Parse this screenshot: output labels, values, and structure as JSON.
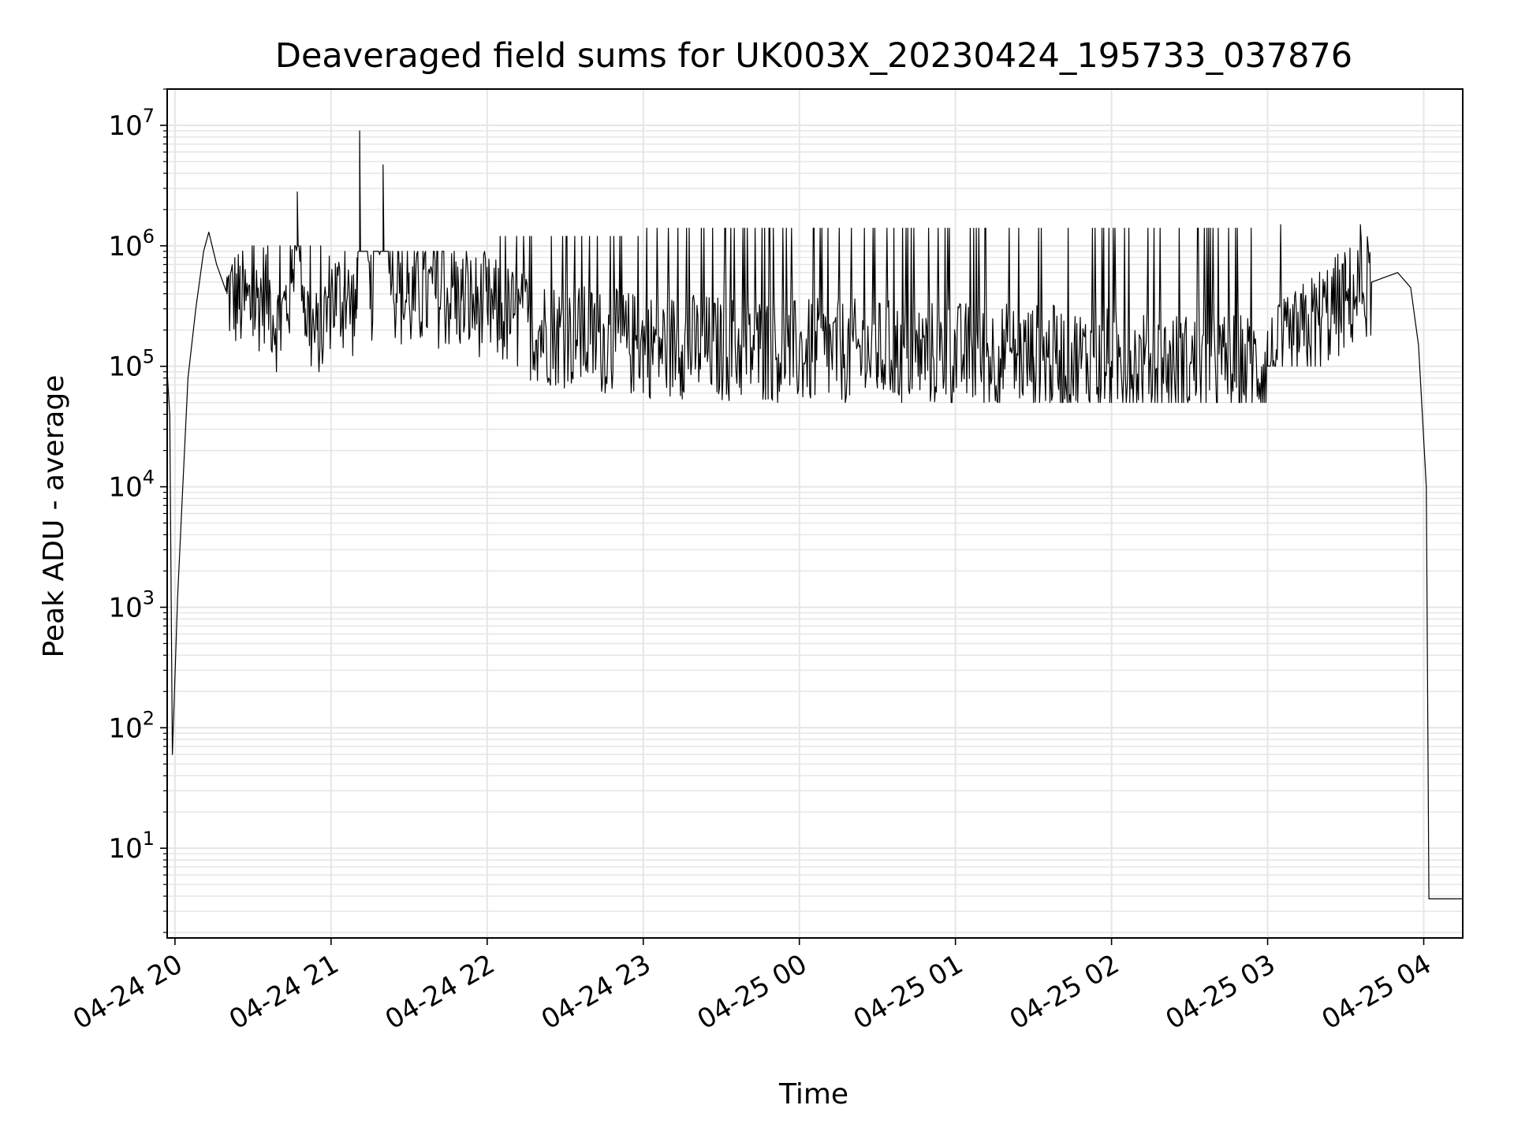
{
  "chart_data": {
    "type": "line",
    "title": "Deaveraged field sums for UK003X_20230424_195733_037876",
    "xlabel": "Time",
    "ylabel": "Peak ADU - average",
    "yscale": "log",
    "ylim": [
      1.8,
      20000000
    ],
    "xlim": [
      "2023-04-24 19:57",
      "2023-04-25 04:15"
    ],
    "grid": true,
    "line_color": "#000000",
    "grid_color": "#e6e6e6",
    "x_ticks": [
      {
        "label": "04-24 20",
        "value": "2023-04-24 20:00"
      },
      {
        "label": "04-24 21",
        "value": "2023-04-24 21:00"
      },
      {
        "label": "04-24 22",
        "value": "2023-04-24 22:00"
      },
      {
        "label": "04-24 23",
        "value": "2023-04-24 23:00"
      },
      {
        "label": "04-25 00",
        "value": "2023-04-25 00:00"
      },
      {
        "label": "04-25 01",
        "value": "2023-04-25 01:00"
      },
      {
        "label": "04-25 02",
        "value": "2023-04-25 02:00"
      },
      {
        "label": "04-25 03",
        "value": "2023-04-25 03:00"
      },
      {
        "label": "04-25 04",
        "value": "2023-04-25 04:00"
      }
    ],
    "y_ticks": [
      {
        "base": "10",
        "exp": "1",
        "value": 10
      },
      {
        "base": "10",
        "exp": "2",
        "value": 100
      },
      {
        "base": "10",
        "exp": "3",
        "value": 1000
      },
      {
        "base": "10",
        "exp": "4",
        "value": 10000
      },
      {
        "base": "10",
        "exp": "5",
        "value": 100000
      },
      {
        "base": "10",
        "exp": "6",
        "value": 1000000
      },
      {
        "base": "10",
        "exp": "7",
        "value": 10000000
      }
    ],
    "series": [
      {
        "values": [
          [
            "2023-04-24 19:57",
            90000
          ],
          [
            "2023-04-24 19:58",
            40000
          ],
          [
            "2023-04-24 19:59",
            60
          ],
          [
            "2023-04-24 20:01",
            1200
          ],
          [
            "2023-04-24 20:03",
            10000
          ],
          [
            "2023-04-24 20:05",
            80000
          ],
          [
            "2023-04-24 20:08",
            300000
          ],
          [
            "2023-04-24 20:11",
            900000
          ],
          [
            "2023-04-24 20:13",
            1300000
          ],
          [
            "2023-04-24 20:16",
            700000
          ],
          [
            "2023-04-24 20:20",
            400000
          ],
          [
            "2023-04-24 20:25",
            350000
          ],
          [
            "2023-04-24 20:30",
            300000
          ],
          [
            "2023-04-24 20:35",
            450000
          ],
          [
            "2023-04-24 20:40",
            200000
          ],
          [
            "2023-04-24 20:45",
            500000
          ],
          [
            "2023-04-24 20:47",
            2800000
          ],
          [
            "2023-04-24 20:50",
            300000
          ],
          [
            "2023-04-24 20:55",
            150000
          ],
          [
            "2023-04-24 21:00",
            400000
          ],
          [
            "2023-04-24 21:05",
            350000
          ],
          [
            "2023-04-24 21:10",
            300000
          ],
          [
            "2023-04-24 21:11",
            9000000
          ],
          [
            "2023-04-24 21:15",
            300000
          ],
          [
            "2023-04-24 21:20",
            4700000
          ],
          [
            "2023-04-24 21:25",
            400000
          ],
          [
            "2023-04-24 21:30",
            350000
          ],
          [
            "2023-04-24 21:40",
            400000
          ],
          [
            "2023-04-24 21:50",
            350000
          ],
          [
            "2023-04-24 22:00",
            300000
          ],
          [
            "2023-04-24 22:10",
            250000
          ],
          [
            "2023-04-24 22:20",
            200000
          ],
          [
            "2023-04-24 22:30",
            180000
          ],
          [
            "2023-04-24 22:45",
            160000
          ],
          [
            "2023-04-24 23:00",
            150000
          ],
          [
            "2023-04-24 23:15",
            150000
          ],
          [
            "2023-04-24 23:30",
            140000
          ],
          [
            "2023-04-24 23:45",
            140000
          ],
          [
            "2023-04-25 00:00",
            130000
          ],
          [
            "2023-04-25 00:30",
            130000
          ],
          [
            "2023-04-25 01:00",
            125000
          ],
          [
            "2023-04-25 01:30",
            120000
          ],
          [
            "2023-04-25 02:00",
            110000
          ],
          [
            "2023-04-25 02:30",
            100000
          ],
          [
            "2023-04-25 03:00",
            100000
          ],
          [
            "2023-04-25 03:10",
            150000
          ],
          [
            "2023-04-25 03:20",
            250000
          ],
          [
            "2023-04-25 03:30",
            350000
          ],
          [
            "2023-04-25 03:40",
            500000
          ],
          [
            "2023-04-25 03:50",
            600000
          ],
          [
            "2023-04-25 03:55",
            450000
          ],
          [
            "2023-04-25 03:58",
            150000
          ],
          [
            "2023-04-25 04:01",
            10000
          ],
          [
            "2023-04-25 04:02",
            3.8
          ],
          [
            "2023-04-25 04:15",
            3.8
          ]
        ]
      }
    ],
    "noise_envelope": [
      {
        "from": "2023-04-24 20:20",
        "to": "2023-04-24 21:00",
        "low": 90000,
        "high": 1000000,
        "density": 6
      },
      {
        "from": "2023-04-24 21:00",
        "to": "2023-04-24 22:00",
        "low": 120000,
        "high": 900000,
        "density": 6
      },
      {
        "from": "2023-04-24 22:00",
        "to": "2023-04-24 23:00",
        "low": 60000,
        "high": 1200000,
        "density": 9
      },
      {
        "from": "2023-04-24 23:00",
        "to": "2023-04-25 03:00",
        "low": 50000,
        "high": 1400000,
        "density": 10
      },
      {
        "from": "2023-04-25 03:00",
        "to": "2023-04-25 03:40",
        "low": 100000,
        "high": 1500000,
        "density": 5
      }
    ]
  }
}
